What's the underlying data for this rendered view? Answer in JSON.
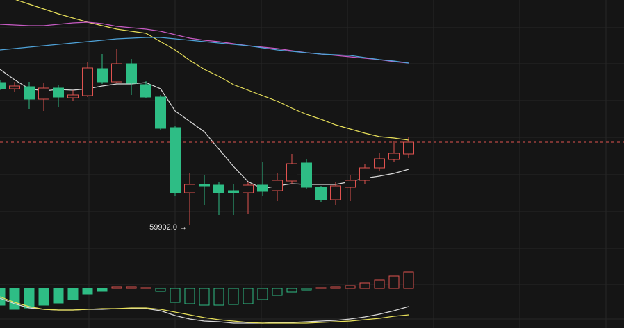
{
  "chart_data": [
    {
      "type": "candlestick",
      "up_color": "#e0524f",
      "down_color": "#2ebd85",
      "open": [
        61962,
        61872,
        61902,
        61722,
        61882,
        61742,
        61772,
        62162,
        61972,
        62232,
        61932,
        61752,
        61312,
        60372,
        60492,
        60482,
        60402,
        60372,
        60482,
        60402,
        60542,
        60802,
        60452,
        60272,
        60452,
        60552,
        60732,
        60852,
        60932
      ],
      "high": [
        62002,
        61972,
        61972,
        61952,
        61932,
        61852,
        62252,
        62372,
        62452,
        62302,
        61982,
        61782,
        61332,
        60652,
        60622,
        60532,
        60502,
        60532,
        60822,
        60652,
        60932,
        60852,
        60472,
        60522,
        60632,
        60782,
        60952,
        61122,
        61182
      ],
      "low": [
        61852,
        61832,
        61582,
        61552,
        61602,
        61702,
        61752,
        61942,
        61952,
        61782,
        61732,
        61272,
        60332,
        59902,
        60202,
        60052,
        60052,
        60072,
        60332,
        60252,
        60492,
        60432,
        60232,
        60202,
        60252,
        60502,
        60682,
        60812,
        60872
      ],
      "close": [
        61872,
        61912,
        61722,
        61882,
        61752,
        61782,
        62172,
        61972,
        62232,
        61952,
        61752,
        61302,
        60372,
        60492,
        60472,
        60372,
        60372,
        60482,
        60392,
        60552,
        60792,
        60452,
        60272,
        60472,
        60552,
        60732,
        60862,
        60942,
        61102
      ],
      "lines": [
        {
          "color": "#e8e05a",
          "values": [
            63232,
            63162,
            63092,
            63022,
            62952,
            62892,
            62832,
            62782,
            62732,
            62702,
            62672,
            62552,
            62432,
            62282,
            62152,
            62052,
            61932,
            61852,
            61772,
            61692,
            61592,
            61502,
            61432,
            61352,
            61292,
            61232,
            61182,
            61162,
            61132
          ]
        },
        {
          "color": "#d9d9d9",
          "values": [
            62152,
            62002,
            61872,
            61842,
            61862,
            61852,
            61872,
            61912,
            61942,
            61942,
            61962,
            61872,
            61552,
            61402,
            61252,
            61002,
            60752,
            60532,
            60432,
            60472,
            60502,
            60492,
            60492,
            60492,
            60532,
            60582,
            60612,
            60652,
            60712
          ]
        },
        {
          "color": "#c75bc4",
          "values": [
            62802,
            62792,
            62782,
            62782,
            62802,
            62822,
            62832,
            62812,
            62772,
            62752,
            62732,
            62702,
            62652,
            62602,
            62572,
            62552,
            62522,
            62492,
            62472,
            62452,
            62422,
            62392,
            62372,
            62352,
            62332,
            62312,
            62292,
            62262,
            62242
          ]
        },
        {
          "color": "#4fa3d9",
          "values": [
            62432,
            62452,
            62472,
            62492,
            62512,
            62532,
            62552,
            62572,
            62592,
            62602,
            62612,
            62612,
            62592,
            62572,
            62552,
            62532,
            62512,
            62492,
            62462,
            62432,
            62412,
            62392,
            62372,
            62362,
            62352,
            62322,
            62292,
            62272,
            62242
          ]
        }
      ],
      "price_line": 61102,
      "low_label": "59902.0 →",
      "low_index": 13,
      "ylim": [
        59552,
        63152
      ]
    },
    {
      "type": "macd",
      "up_color": "#e0524f",
      "down_color": "#2ebd85",
      "histogram": [
        -120,
        -150,
        -140,
        -120,
        -105,
        -80,
        -40,
        -20,
        10,
        10,
        5,
        -20,
        -100,
        -110,
        -120,
        -120,
        -115,
        -110,
        -80,
        -50,
        -25,
        -10,
        5,
        10,
        20,
        40,
        60,
        90,
        120
      ],
      "lines": [
        {
          "color": "#d9d9d9",
          "values": [
            -70,
            -110,
            -140,
            -150,
            -155,
            -155,
            -150,
            -150,
            -145,
            -145,
            -145,
            -160,
            -195,
            -220,
            -235,
            -240,
            -250,
            -250,
            -250,
            -245,
            -245,
            -240,
            -235,
            -230,
            -220,
            -205,
            -185,
            -160,
            -130
          ]
        },
        {
          "color": "#e8e05a",
          "values": [
            -60,
            -100,
            -130,
            -150,
            -155,
            -155,
            -150,
            -145,
            -145,
            -140,
            -140,
            -150,
            -170,
            -190,
            -210,
            -225,
            -235,
            -245,
            -250,
            -250,
            -250,
            -250,
            -245,
            -240,
            -235,
            -225,
            -215,
            -200,
            -190
          ]
        }
      ],
      "ylim": [
        -285,
        230
      ]
    }
  ]
}
